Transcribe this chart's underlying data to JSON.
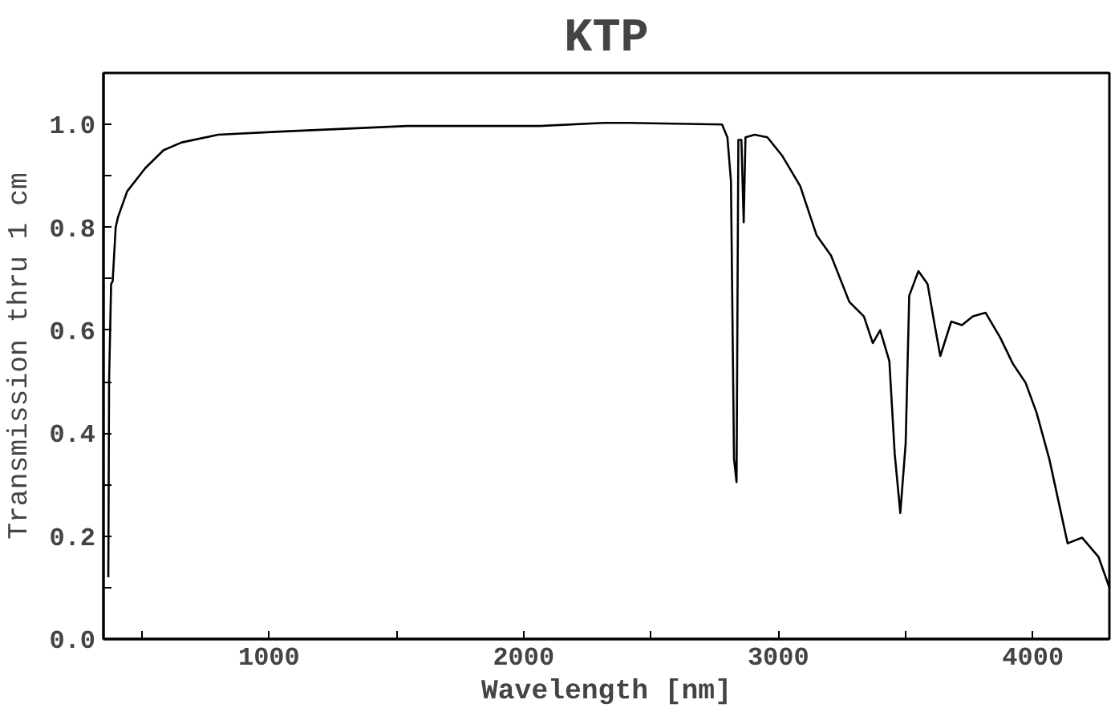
{
  "chart_data": {
    "type": "line",
    "title": "KTP",
    "xlabel": "Wavelength [nm]",
    "ylabel": "Transmission thru 1 cm",
    "xlim": [
      350,
      4300
    ],
    "ylim": [
      0,
      1.1
    ],
    "xticks": [
      {
        "value": 500,
        "label": null
      },
      1000,
      {
        "value": 1500,
        "label": null
      },
      2000,
      {
        "value": 2500,
        "label": null
      },
      3000,
      {
        "value": 3500,
        "label": null
      },
      4000
    ],
    "yticks": [
      {
        "value": 0,
        "label": "0.0"
      },
      {
        "value": 0.1,
        "label": null
      },
      0.2,
      {
        "value": 0.3,
        "label": null
      },
      0.4,
      {
        "value": 0.5,
        "label": null
      },
      0.6,
      {
        "value": 0.7,
        "label": null
      },
      0.8,
      {
        "value": 0.9,
        "label": null
      },
      {
        "value": 1,
        "label": "1.0"
      }
    ],
    "grid": false,
    "marker": "none",
    "line_style": "solid",
    "series": [
      {
        "color": "#000000",
        "x": [
          369,
          372,
          380,
          386,
          398,
          407,
          443,
          514,
          586,
          657,
          800,
          1043,
          1543,
          2064,
          2314,
          2407,
          2779,
          2800,
          2814,
          2826,
          2836,
          2843,
          2855,
          2864,
          2871,
          2907,
          2957,
          3014,
          3086,
          3150,
          3207,
          3279,
          3336,
          3371,
          3400,
          3436,
          3457,
          3479,
          3500,
          3514,
          3550,
          3586,
          3614,
          3636,
          3679,
          3721,
          3764,
          3814,
          3871,
          3921,
          3971,
          4014,
          4064,
          4136,
          4193,
          4257,
          4300
        ],
        "values": [
          0.12,
          0.5,
          0.69,
          0.695,
          0.8,
          0.82,
          0.87,
          0.915,
          0.95,
          0.965,
          0.98,
          0.986,
          0.997,
          0.997,
          1.003,
          1.003,
          1.0,
          0.975,
          0.89,
          0.35,
          0.305,
          0.97,
          0.97,
          0.81,
          0.975,
          0.98,
          0.975,
          0.94,
          0.88,
          0.785,
          0.745,
          0.655,
          0.627,
          0.575,
          0.6,
          0.54,
          0.36,
          0.245,
          0.38,
          0.667,
          0.715,
          0.69,
          0.61,
          0.55,
          0.617,
          0.61,
          0.627,
          0.634,
          0.586,
          0.535,
          0.498,
          0.44,
          0.35,
          0.186,
          0.197,
          0.16,
          0.1
        ]
      }
    ]
  }
}
